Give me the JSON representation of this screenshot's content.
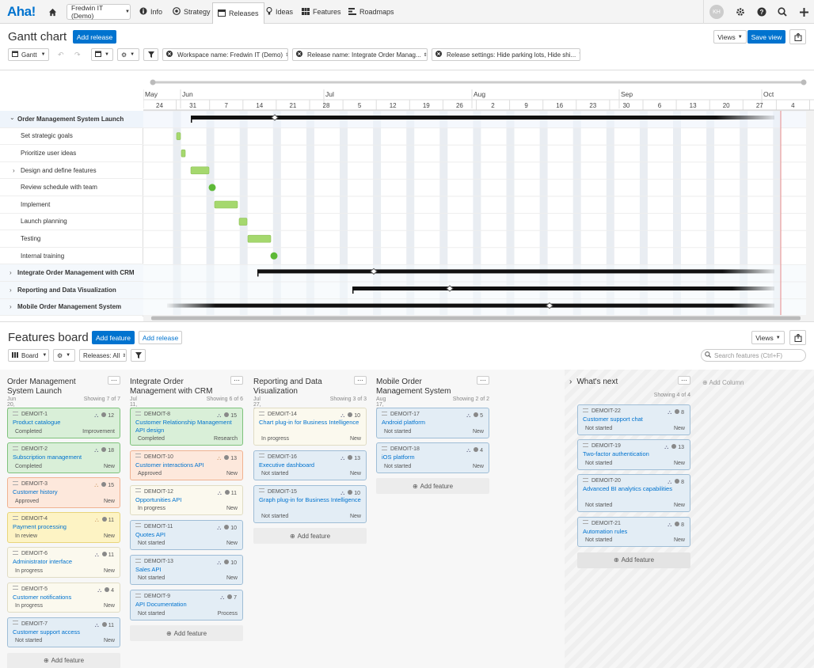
{
  "nav": {
    "logo": "Aha!",
    "workspace": "Fredwin IT (Demo)",
    "tabs": [
      {
        "label": "Info",
        "icon": "info-icon"
      },
      {
        "label": "Strategy",
        "icon": "target-icon"
      },
      {
        "label": "Releases",
        "icon": "calendar-icon"
      },
      {
        "label": "Ideas",
        "icon": "lightbulb-icon"
      },
      {
        "label": "Features",
        "icon": "grid-icon"
      },
      {
        "label": "Roadmaps",
        "icon": "roadmap-icon"
      }
    ],
    "avatar": "KH"
  },
  "gantt": {
    "title": "Gantt chart",
    "add_release": "Add release",
    "views": "Views",
    "save_view": "Save view",
    "view_select": "Gantt",
    "filters": [
      "Workspace name: Fredwin IT (Demo)",
      "Release name: Integrate Order Manag...",
      "Release settings: Hide parking lots, Hide shi..."
    ],
    "months": [
      "May",
      "Jun",
      "Jul",
      "Aug",
      "Sep",
      "Oct"
    ],
    "days": [
      "24",
      "31",
      "7",
      "14",
      "21",
      "28",
      "5",
      "12",
      "19",
      "26",
      "2",
      "9",
      "16",
      "23",
      "30",
      "6",
      "13",
      "20",
      "27",
      "4",
      "11"
    ],
    "rows": [
      {
        "label": "Order Management System Launch",
        "bold": true,
        "expander": "down"
      },
      {
        "label": "Set strategic goals",
        "bold": false,
        "expander": ""
      },
      {
        "label": "Prioritize user ideas",
        "bold": false,
        "expander": ""
      },
      {
        "label": "Design and define features",
        "bold": false,
        "expander": "right"
      },
      {
        "label": "Review schedule with team",
        "bold": false,
        "expander": ""
      },
      {
        "label": "Implement",
        "bold": false,
        "expander": ""
      },
      {
        "label": "Launch planning",
        "bold": false,
        "expander": ""
      },
      {
        "label": "Testing",
        "bold": false,
        "expander": ""
      },
      {
        "label": "Internal training",
        "bold": false,
        "expander": ""
      },
      {
        "label": "Integrate Order Management with CRM",
        "bold": true,
        "expander": "right"
      },
      {
        "label": "Reporting and Data Visualization",
        "bold": true,
        "expander": "right"
      },
      {
        "label": "Mobile Order Management System",
        "bold": true,
        "expander": "right"
      }
    ]
  },
  "board": {
    "title": "Features board",
    "add_feature": "Add feature",
    "add_release": "Add release",
    "views": "Views",
    "view_select": "Board",
    "releases_filter": "Releases: All",
    "search_placeholder": "Search features (Ctrl+F)",
    "add_feature_label": "Add feature",
    "add_column": "Add Column",
    "columns": [
      {
        "title": "Order Management System Launch",
        "date": "Jun 20, 2020",
        "showing": "Showing 7 of 7",
        "cards": [
          {
            "id": "DEMOIT-1",
            "name": "Product catalogue",
            "status": "Completed",
            "type": "Improvement",
            "score": "12",
            "color": "green"
          },
          {
            "id": "DEMOIT-2",
            "name": "Subscription management",
            "status": "Completed",
            "type": "New",
            "score": "18",
            "color": "green"
          },
          {
            "id": "DEMOIT-3",
            "name": "Customer history",
            "status": "Approved",
            "type": "New",
            "score": "15",
            "color": "orange"
          },
          {
            "id": "DEMOIT-4",
            "name": "Payment processing",
            "status": "In review",
            "type": "New",
            "score": "11",
            "color": "yellow"
          },
          {
            "id": "DEMOIT-6",
            "name": "Administrator interface",
            "status": "In progress",
            "type": "New",
            "score": "11",
            "color": "cream"
          },
          {
            "id": "DEMOIT-5",
            "name": "Customer notifications",
            "status": "In progress",
            "type": "New",
            "score": "4",
            "color": "cream"
          },
          {
            "id": "DEMOIT-7",
            "name": "Customer support access",
            "status": "Not started",
            "type": "New",
            "score": "11",
            "color": "blue"
          }
        ]
      },
      {
        "title": "Integrate Order Management with CRM",
        "date": "Jul 11, 2020",
        "showing": "Showing 6 of 6",
        "cards": [
          {
            "id": "DEMOIT-8",
            "name": "Customer Relationship Management API design",
            "status": "Completed",
            "type": "Research",
            "score": "15",
            "color": "green"
          },
          {
            "id": "DEMOIT-10",
            "name": "Customer interactions API",
            "status": "Approved",
            "type": "New",
            "score": "13",
            "color": "orange"
          },
          {
            "id": "DEMOIT-12",
            "name": "Opportunities API",
            "status": "In progress",
            "type": "New",
            "score": "11",
            "color": "cream"
          },
          {
            "id": "DEMOIT-11",
            "name": "Quotes API",
            "status": "Not started",
            "type": "New",
            "score": "10",
            "color": "blue"
          },
          {
            "id": "DEMOIT-13",
            "name": "Sales API",
            "status": "Not started",
            "type": "New",
            "score": "10",
            "color": "blue"
          },
          {
            "id": "DEMOIT-9",
            "name": "API Documentation",
            "status": "Not started",
            "type": "Process",
            "score": "7",
            "color": "blue"
          }
        ]
      },
      {
        "title": "Reporting and Data Visualization",
        "date": "Jul 27, 2020",
        "showing": "Showing 3 of 3",
        "cards": [
          {
            "id": "DEMOIT-14",
            "name": "Chart plug-in for Business Intelligence",
            "status": "In progress",
            "type": "New",
            "score": "10",
            "color": "cream"
          },
          {
            "id": "DEMOIT-16",
            "name": "Executive dashboard",
            "status": "Not started",
            "type": "New",
            "score": "13",
            "color": "blue"
          },
          {
            "id": "DEMOIT-15",
            "name": "Graph plug-in for Business Intelligence",
            "status": "Not started",
            "type": "New",
            "score": "10",
            "color": "blue"
          }
        ]
      },
      {
        "title": "Mobile Order Management System",
        "date": "Aug 17, 2020",
        "showing": "Showing 2 of 2",
        "cards": [
          {
            "id": "DEMOIT-17",
            "name": "Android platform",
            "status": "Not started",
            "type": "New",
            "score": "5",
            "color": "blue"
          },
          {
            "id": "DEMOIT-18",
            "name": "iOS platform",
            "status": "Not started",
            "type": "New",
            "score": "4",
            "color": "blue"
          }
        ]
      },
      {
        "title": "What's next",
        "date": "",
        "showing": "Showing 4 of 4",
        "cards": [
          {
            "id": "DEMOIT-22",
            "name": "Customer support chat",
            "status": "Not started",
            "type": "New",
            "score": "8",
            "color": "blue"
          },
          {
            "id": "DEMOIT-19",
            "name": "Two-factor authentication",
            "status": "Not started",
            "type": "New",
            "score": "13",
            "color": "blue"
          },
          {
            "id": "DEMOIT-20",
            "name": "Advanced BI analytics capabilities",
            "status": "Not started",
            "type": "New",
            "score": "8",
            "color": "blue"
          },
          {
            "id": "DEMOIT-21",
            "name": "Automation rules",
            "status": "Not started",
            "type": "New",
            "score": "8",
            "color": "blue"
          }
        ]
      }
    ]
  },
  "colors": {
    "accent": "#0073cf",
    "card_green": "#d7eed8",
    "card_orange": "#fde7dc",
    "card_yellow": "#fdf3c4",
    "card_cream": "#fbf9ef",
    "card_blue": "#e4eef6",
    "bar_green": "#a5d86e",
    "milestone_green": "#5db937"
  }
}
